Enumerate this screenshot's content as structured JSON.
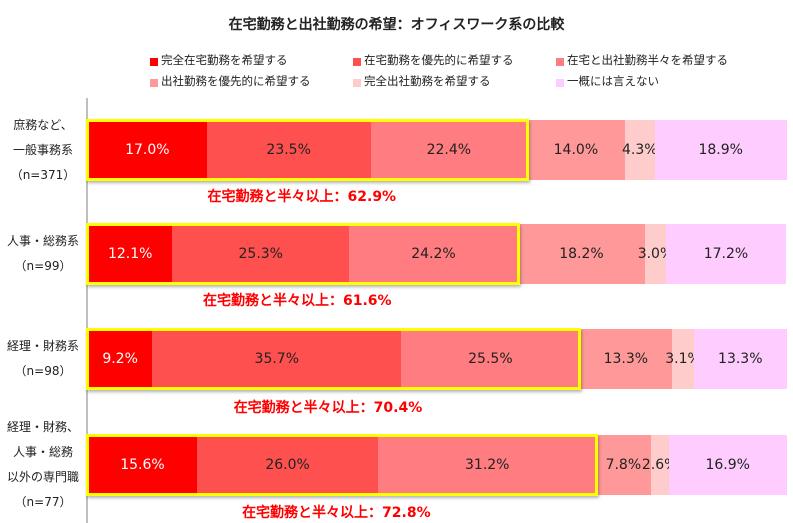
{
  "chart_data": {
    "type": "bar",
    "orientation": "horizontal",
    "stacked": true,
    "title": "在宅勤務と出社勤務の希望：オフィスワーク系の比較",
    "legend_position": "top",
    "series": [
      {
        "name": "完全在宅勤務を希望する",
        "color": "#ff0000",
        "values": [
          17.0,
          12.1,
          9.2,
          15.6
        ]
      },
      {
        "name": "在宅勤務を優先的に希望する",
        "color": "#ff5050",
        "values": [
          23.5,
          25.3,
          35.7,
          26.0
        ]
      },
      {
        "name": "在宅と出社勤務半々を希望する",
        "color": "#ff7c80",
        "values": [
          22.4,
          24.2,
          25.5,
          31.2
        ]
      },
      {
        "name": "出社勤務を優先的に希望する",
        "color": "#ff9999",
        "values": [
          14.0,
          18.2,
          13.3,
          7.8
        ]
      },
      {
        "name": "完全出社勤務を希望する",
        "color": "#ffcccc",
        "values": [
          4.3,
          3.0,
          3.1,
          2.6
        ]
      },
      {
        "name": "一概には言えない",
        "color": "#ffccff",
        "values": [
          18.9,
          17.2,
          13.3,
          16.9
        ]
      }
    ],
    "categories": [
      {
        "lines": [
          "庶務など、",
          "一般事務系",
          "（n=371）"
        ],
        "note": "在宅勤務と半々以上：62.9%"
      },
      {
        "lines": [
          "人事・総務系",
          "（n=99）"
        ],
        "note": "在宅勤務と半々以上：61.6%"
      },
      {
        "lines": [
          "経理・財務系",
          "（n=98）"
        ],
        "note": "在宅勤務と半々以上：70.4%"
      },
      {
        "lines": [
          "経理・財務、",
          "人事・総務",
          "以外の専門職",
          "（n=77）"
        ],
        "note": "在宅勤務と半々以上：72.8%"
      }
    ],
    "xlim": [
      0,
      100
    ]
  }
}
